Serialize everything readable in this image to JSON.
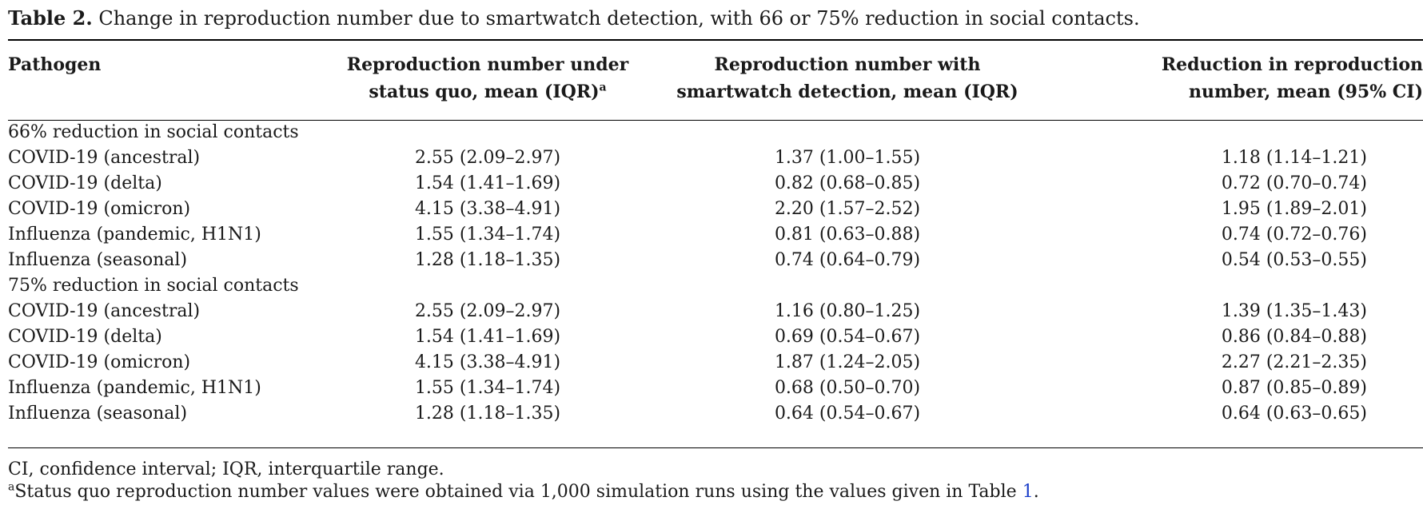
{
  "caption": {
    "label": "Table 2.",
    "text": "Change in reproduction number due to smartwatch detection, with 66 or 75% reduction in social contacts."
  },
  "headers": {
    "pathogen": "Pathogen",
    "status_quo_line1": "Reproduction number under",
    "status_quo_line2": "status quo, mean (IQR)",
    "status_quo_sup": "a",
    "smartwatch_line1": "Reproduction number with",
    "smartwatch_line2": "smartwatch detection, mean (IQR)",
    "reduction_line1": "Reduction in reproduction",
    "reduction_line2": "number, mean (95% CI)"
  },
  "sections": [
    {
      "title": "66% reduction in social contacts",
      "rows": [
        {
          "pathogen": "COVID-19 (ancestral)",
          "status_quo": "2.55 (2.09–2.97)",
          "smartwatch": "1.37 (1.00–1.55)",
          "reduction": "1.18 (1.14–1.21)"
        },
        {
          "pathogen": "COVID-19 (delta)",
          "status_quo": "1.54 (1.41–1.69)",
          "smartwatch": "0.82 (0.68–0.85)",
          "reduction": "0.72 (0.70–0.74)"
        },
        {
          "pathogen": "COVID-19 (omicron)",
          "status_quo": "4.15 (3.38–4.91)",
          "smartwatch": "2.20 (1.57–2.52)",
          "reduction": "1.95 (1.89–2.01)"
        },
        {
          "pathogen": "Influenza (pandemic, H1N1)",
          "status_quo": "1.55 (1.34–1.74)",
          "smartwatch": "0.81 (0.63–0.88)",
          "reduction": "0.74 (0.72–0.76)"
        },
        {
          "pathogen": "Influenza (seasonal)",
          "status_quo": "1.28 (1.18–1.35)",
          "smartwatch": "0.74 (0.64–0.79)",
          "reduction": "0.54 (0.53–0.55)"
        }
      ]
    },
    {
      "title": "75% reduction in social contacts",
      "rows": [
        {
          "pathogen": "COVID-19 (ancestral)",
          "status_quo": "2.55 (2.09–2.97)",
          "smartwatch": "1.16 (0.80–1.25)",
          "reduction": "1.39 (1.35–1.43)"
        },
        {
          "pathogen": "COVID-19 (delta)",
          "status_quo": "1.54 (1.41–1.69)",
          "smartwatch": "0.69 (0.54–0.67)",
          "reduction": "0.86 (0.84–0.88)"
        },
        {
          "pathogen": "COVID-19 (omicron)",
          "status_quo": "4.15 (3.38–4.91)",
          "smartwatch": "1.87 (1.24–2.05)",
          "reduction": "2.27 (2.21–2.35)"
        },
        {
          "pathogen": "Influenza (pandemic, H1N1)",
          "status_quo": "1.55 (1.34–1.74)",
          "smartwatch": "0.68 (0.50–0.70)",
          "reduction": "0.87 (0.85–0.89)"
        },
        {
          "pathogen": "Influenza (seasonal)",
          "status_quo": "1.28 (1.18–1.35)",
          "smartwatch": "0.64 (0.54–0.67)",
          "reduction": "0.64 (0.63–0.65)"
        }
      ]
    }
  ],
  "footnotes": {
    "abbreviations": "CI, confidence interval; IQR, interquartile range.",
    "note_marker": "a",
    "note_text": "Status quo reproduction number values were obtained via 1,000 simulation runs using the values given in Table ",
    "note_ref": "1",
    "note_end": "."
  },
  "colors": {
    "text": "#1a1a1a",
    "link": "#1a3ec9",
    "rule": "#000000"
  }
}
